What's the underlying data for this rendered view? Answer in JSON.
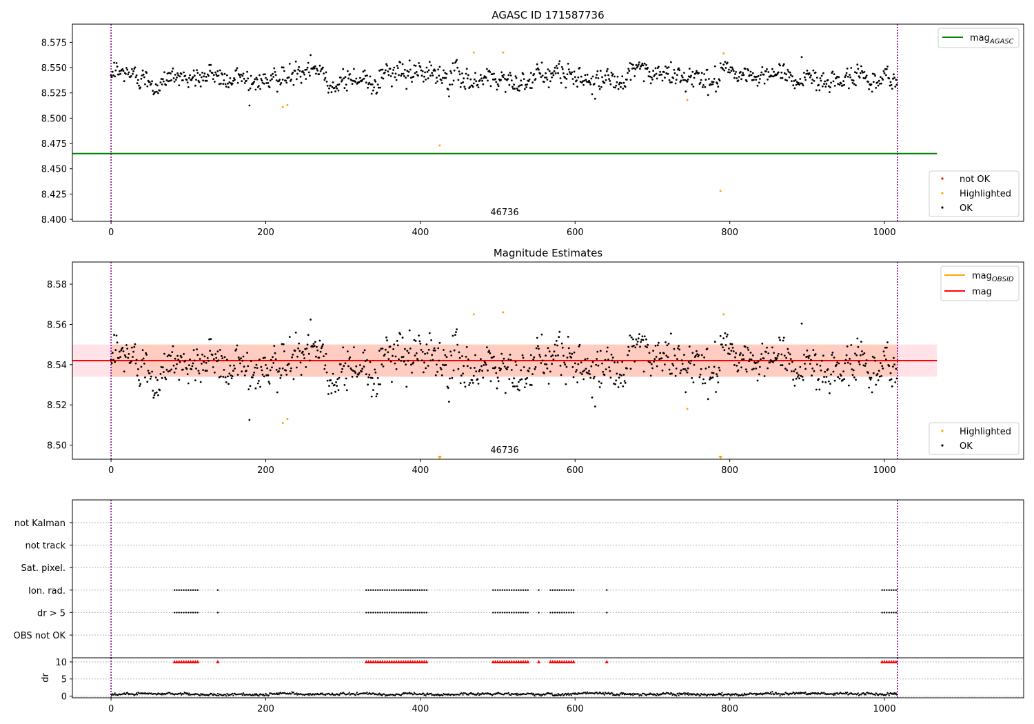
{
  "chart_data": [
    {
      "type": "scatter",
      "title": "AGASC ID 171587736",
      "xlabel": "",
      "ylabel": "",
      "xlim": [
        -50,
        1180
      ],
      "ylim": [
        8.398,
        8.593
      ],
      "xticks": [
        0,
        200,
        400,
        600,
        800,
        1000
      ],
      "xtick_labels": [
        "0",
        "200",
        "400",
        "600",
        "800",
        "1000"
      ],
      "yticks": [
        8.4,
        8.425,
        8.45,
        8.475,
        8.5,
        8.525,
        8.55,
        8.575
      ],
      "ytick_labels": [
        "8.400",
        "8.425",
        "8.450",
        "8.475",
        "8.500",
        "8.525",
        "8.550",
        "8.575"
      ],
      "vlines": [
        0,
        1017
      ],
      "vline_color": "#800080",
      "annotation": {
        "text": "46736",
        "x": 508,
        "y": 8.405
      },
      "mag_agasc_line": {
        "y": 8.465,
        "x_range": [
          -50,
          1068
        ],
        "color": "#008000"
      },
      "legend_upper": {
        "entries": [
          {
            "label": "mag",
            "sub": "AGASC",
            "color": "#008000",
            "kind": "line"
          }
        ],
        "placement": "top-right"
      },
      "legend_lower": {
        "entries": [
          {
            "label": "not OK",
            "color": "#ff0000",
            "kind": "dot"
          },
          {
            "label": "Highlighted",
            "color": "#ffa500",
            "kind": "dot"
          },
          {
            "label": "OK",
            "color": "#000000",
            "kind": "dot"
          }
        ],
        "placement": "lower-right"
      },
      "series": [
        {
          "name": "OK",
          "color": "#000000",
          "generated": {
            "n": 1017,
            "center": 8.541,
            "spread": 0.009
          }
        },
        {
          "name": "Highlighted",
          "color": "#ffa500",
          "points": [
            [
              222,
              8.511
            ],
            [
              228,
              8.513
            ],
            [
              425,
              8.473
            ],
            [
              469,
              8.565
            ],
            [
              507,
              8.565
            ],
            [
              745,
              8.518
            ],
            [
              788,
              8.428
            ],
            [
              792,
              8.564
            ]
          ]
        }
      ]
    },
    {
      "type": "scatter",
      "title": "Magnitude Estimates",
      "xlabel": "",
      "ylabel": "",
      "xlim": [
        -50,
        1180
      ],
      "ylim": [
        8.493,
        8.591
      ],
      "xticks": [
        0,
        200,
        400,
        600,
        800,
        1000
      ],
      "xtick_labels": [
        "0",
        "200",
        "400",
        "600",
        "800",
        "1000"
      ],
      "yticks": [
        8.5,
        8.52,
        8.54,
        8.56,
        8.58
      ],
      "ytick_labels": [
        "8.50",
        "8.52",
        "8.54",
        "8.56",
        "8.58"
      ],
      "vlines": [
        0,
        1017
      ],
      "vline_color": "#800080",
      "annotation": {
        "text": "46736",
        "x": 508,
        "y": 8.497
      },
      "mag_line": {
        "y": 8.542,
        "color": "#ff0000"
      },
      "mag_band": {
        "y_range": [
          8.534,
          8.55
        ],
        "x_range": [
          -50,
          1068
        ],
        "color": "#ffc0cb"
      },
      "obsid_band": {
        "y_range": [
          8.534,
          8.55
        ],
        "x_range": [
          0,
          1017
        ],
        "color": "#ffa07a"
      },
      "obsid_line": {
        "y": 8.542,
        "color": "#ffa500"
      },
      "legend_upper": {
        "entries": [
          {
            "label": "mag",
            "sub": "OBSID",
            "color": "#ffa500",
            "kind": "line"
          },
          {
            "label": "mag",
            "color": "#ff0000",
            "kind": "line"
          }
        ],
        "placement": "top-right"
      },
      "legend_lower": {
        "entries": [
          {
            "label": "Highlighted",
            "color": "#ffa500",
            "kind": "dot"
          },
          {
            "label": "OK",
            "color": "#000000",
            "kind": "dot"
          }
        ],
        "placement": "lower-right"
      },
      "series": [
        {
          "name": "OK",
          "color": "#000000",
          "generated": {
            "n": 1017,
            "center": 8.541,
            "spread": 0.009
          }
        },
        {
          "name": "Highlighted",
          "color": "#ffa500",
          "points": [
            [
              222,
              8.511
            ],
            [
              228,
              8.513
            ],
            [
              469,
              8.565
            ],
            [
              507,
              8.566
            ],
            [
              745,
              8.518
            ],
            [
              792,
              8.565
            ]
          ]
        },
        {
          "name": "Highlighted (below range)",
          "color": "#ffa500",
          "marker": "triangle-down",
          "points": [
            [
              425,
              8.493
            ],
            [
              788,
              8.493
            ]
          ]
        }
      ]
    },
    {
      "type": "scatter",
      "title": "",
      "xlabel": "",
      "ylabel": "",
      "xlim": [
        -50,
        1180
      ],
      "categories": [
        "not Kalman",
        "not track",
        "Sat. pixel.",
        "Ion. rad.",
        "dr > 5",
        "OBS not OK"
      ],
      "vlines": [
        0,
        1017
      ],
      "vline_color": "#800080",
      "flag_ranges": [
        [
          82,
          113
        ],
        [
          138,
          138
        ],
        [
          330,
          410
        ],
        [
          494,
          540
        ],
        [
          553,
          553
        ],
        [
          568,
          600
        ],
        [
          641,
          641
        ],
        [
          997,
          1017
        ]
      ],
      "flagged_categories": [
        "Ion. rad.",
        "dr > 5"
      ]
    },
    {
      "type": "scatter",
      "title": "",
      "xlabel": "",
      "ylabel": "dr",
      "xlim": [
        -50,
        1180
      ],
      "ylim": [
        -0.5,
        11.2
      ],
      "yticks": [
        0,
        5,
        10
      ],
      "ytick_labels": [
        "0",
        "5",
        "10"
      ],
      "xticks": [
        0,
        200,
        400,
        600,
        800,
        1000
      ],
      "xtick_labels": [
        "0",
        "200",
        "400",
        "600",
        "800",
        "1000"
      ],
      "vlines": [
        0,
        1017
      ],
      "vline_color": "#800080",
      "series": [
        {
          "name": "dr",
          "color": "#000000",
          "generated": {
            "n": 1017,
            "center": 0.6,
            "spread": 0.3
          }
        },
        {
          "name": "dr > 5 (clipped)",
          "color": "#ff0000",
          "marker": "triangle-up",
          "value": 10
        }
      ]
    }
  ]
}
